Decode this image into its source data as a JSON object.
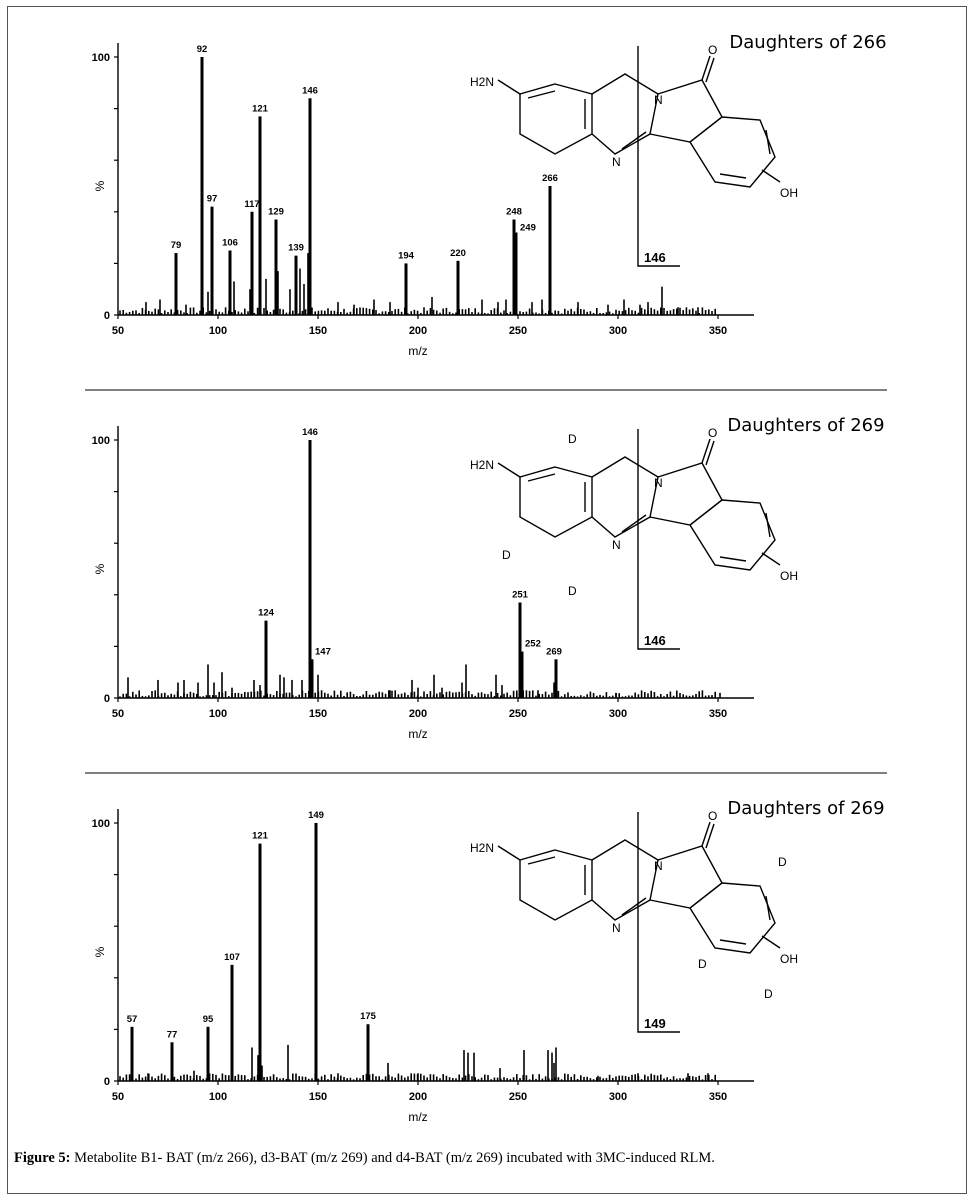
{
  "caption": {
    "label": "Figure 5:",
    "text": " Metabolite B1- BAT (m/z 266), d3-BAT (m/z 269) and d4-BAT (m/z 269) incubated with 3MC-induced RLM."
  },
  "chart_data": [
    {
      "type": "bar",
      "title": "Daughters of 266",
      "xlabel": "m/z",
      "ylabel": "%",
      "xlim": [
        50,
        350
      ],
      "ylim": [
        0,
        100
      ],
      "xticks": [
        50,
        100,
        150,
        200,
        250,
        300,
        350
      ],
      "yticks": [
        0,
        100
      ],
      "peaks": [
        {
          "x": 79,
          "y": 24,
          "label": "79"
        },
        {
          "x": 92,
          "y": 100,
          "label": "92"
        },
        {
          "x": 97,
          "y": 42,
          "label": "97"
        },
        {
          "x": 106,
          "y": 25,
          "label": "106"
        },
        {
          "x": 117,
          "y": 40,
          "label": "117"
        },
        {
          "x": 121,
          "y": 77,
          "label": "121"
        },
        {
          "x": 129,
          "y": 37,
          "label": "129"
        },
        {
          "x": 139,
          "y": 23,
          "label": "139"
        },
        {
          "x": 146,
          "y": 84,
          "label": "146"
        },
        {
          "x": 194,
          "y": 20,
          "label": "194"
        },
        {
          "x": 220,
          "y": 21,
          "label": "220"
        },
        {
          "x": 248,
          "y": 37,
          "label": "248"
        },
        {
          "x": 249,
          "y": 32,
          "label": "249"
        },
        {
          "x": 266,
          "y": 50,
          "label": "266"
        }
      ],
      "minor_peaks": [
        {
          "x": 95,
          "y": 9
        },
        {
          "x": 108,
          "y": 13
        },
        {
          "x": 116,
          "y": 10
        },
        {
          "x": 124,
          "y": 14
        },
        {
          "x": 130,
          "y": 17
        },
        {
          "x": 136,
          "y": 10
        },
        {
          "x": 141,
          "y": 18
        },
        {
          "x": 143,
          "y": 12
        },
        {
          "x": 145,
          "y": 24
        },
        {
          "x": 322,
          "y": 11
        },
        {
          "x": 64,
          "y": 5
        },
        {
          "x": 71,
          "y": 6
        },
        {
          "x": 84,
          "y": 4
        },
        {
          "x": 160,
          "y": 5
        },
        {
          "x": 168,
          "y": 4
        },
        {
          "x": 178,
          "y": 6
        },
        {
          "x": 186,
          "y": 5
        },
        {
          "x": 207,
          "y": 7
        },
        {
          "x": 232,
          "y": 6
        },
        {
          "x": 240,
          "y": 5
        },
        {
          "x": 244,
          "y": 6
        },
        {
          "x": 257,
          "y": 5
        },
        {
          "x": 262,
          "y": 6
        },
        {
          "x": 280,
          "y": 5
        },
        {
          "x": 295,
          "y": 4
        },
        {
          "x": 303,
          "y": 6
        },
        {
          "x": 311,
          "y": 4
        },
        {
          "x": 315,
          "y": 5
        },
        {
          "x": 330,
          "y": 3
        },
        {
          "x": 340,
          "y": 3
        }
      ],
      "structure": {
        "amine": "H2N",
        "hydroxyl": "OH",
        "oxygen": "O",
        "nitrogen_ring": "N",
        "nitrogen_lower": "N",
        "deuterium": [],
        "fragment": "146"
      }
    },
    {
      "type": "bar",
      "title": "Daughters of 269",
      "xlabel": "m/z",
      "ylabel": "%",
      "xlim": [
        50,
        350
      ],
      "ylim": [
        0,
        100
      ],
      "xticks": [
        50,
        100,
        150,
        200,
        250,
        300,
        350
      ],
      "yticks": [
        0,
        100
      ],
      "peaks": [
        {
          "x": 124,
          "y": 30,
          "label": "124"
        },
        {
          "x": 146,
          "y": 100,
          "label": "146"
        },
        {
          "x": 147,
          "y": 15,
          "label": "147"
        },
        {
          "x": 251,
          "y": 37,
          "label": "251"
        },
        {
          "x": 252,
          "y": 18,
          "label": "252"
        },
        {
          "x": 269,
          "y": 15,
          "label": "269"
        }
      ],
      "minor_peaks": [
        {
          "x": 55,
          "y": 8
        },
        {
          "x": 70,
          "y": 7
        },
        {
          "x": 80,
          "y": 6
        },
        {
          "x": 83,
          "y": 7
        },
        {
          "x": 90,
          "y": 6
        },
        {
          "x": 95,
          "y": 13
        },
        {
          "x": 98,
          "y": 6
        },
        {
          "x": 102,
          "y": 10
        },
        {
          "x": 107,
          "y": 4
        },
        {
          "x": 118,
          "y": 7
        },
        {
          "x": 121,
          "y": 5
        },
        {
          "x": 131,
          "y": 9
        },
        {
          "x": 133,
          "y": 8
        },
        {
          "x": 137,
          "y": 7
        },
        {
          "x": 142,
          "y": 7
        },
        {
          "x": 150,
          "y": 9
        },
        {
          "x": 186,
          "y": 3
        },
        {
          "x": 197,
          "y": 7
        },
        {
          "x": 200,
          "y": 4
        },
        {
          "x": 208,
          "y": 9
        },
        {
          "x": 212,
          "y": 4
        },
        {
          "x": 222,
          "y": 6
        },
        {
          "x": 224,
          "y": 13
        },
        {
          "x": 239,
          "y": 9
        },
        {
          "x": 242,
          "y": 5
        },
        {
          "x": 260,
          "y": 3
        },
        {
          "x": 268,
          "y": 6
        },
        {
          "x": 299,
          "y": 2
        },
        {
          "x": 351,
          "y": 2
        }
      ],
      "structure": {
        "amine": "H2N",
        "hydroxyl": "OH",
        "oxygen": "O",
        "nitrogen_ring": "N",
        "nitrogen_lower": "N",
        "deuterium": [
          "D",
          "D",
          "D"
        ],
        "fragment": "146"
      }
    },
    {
      "type": "bar",
      "title": "Daughters of 269",
      "xlabel": "m/z",
      "ylabel": "%",
      "xlim": [
        50,
        350
      ],
      "ylim": [
        0,
        100
      ],
      "xticks": [
        50,
        100,
        150,
        200,
        250,
        300,
        350
      ],
      "yticks": [
        0,
        100
      ],
      "peaks": [
        {
          "x": 57,
          "y": 21,
          "label": "57"
        },
        {
          "x": 77,
          "y": 15,
          "label": "77"
        },
        {
          "x": 95,
          "y": 21,
          "label": "95"
        },
        {
          "x": 107,
          "y": 45,
          "label": "107"
        },
        {
          "x": 121,
          "y": 92,
          "label": "121"
        },
        {
          "x": 149,
          "y": 100,
          "label": "149"
        },
        {
          "x": 175,
          "y": 22,
          "label": "175"
        }
      ],
      "minor_peaks": [
        {
          "x": 117,
          "y": 13
        },
        {
          "x": 120,
          "y": 10
        },
        {
          "x": 122,
          "y": 6
        },
        {
          "x": 135,
          "y": 14
        },
        {
          "x": 185,
          "y": 7
        },
        {
          "x": 223,
          "y": 12
        },
        {
          "x": 225,
          "y": 11
        },
        {
          "x": 228,
          "y": 11
        },
        {
          "x": 241,
          "y": 5
        },
        {
          "x": 253,
          "y": 12
        },
        {
          "x": 265,
          "y": 12
        },
        {
          "x": 267,
          "y": 11
        },
        {
          "x": 269,
          "y": 13
        },
        {
          "x": 268,
          "y": 7
        },
        {
          "x": 335,
          "y": 3
        },
        {
          "x": 65,
          "y": 3
        },
        {
          "x": 88,
          "y": 4
        },
        {
          "x": 160,
          "y": 3
        },
        {
          "x": 200,
          "y": 3
        },
        {
          "x": 290,
          "y": 2
        },
        {
          "x": 310,
          "y": 3
        },
        {
          "x": 345,
          "y": 3
        }
      ],
      "structure": {
        "amine": "H2N",
        "hydroxyl": "OH",
        "oxygen": "O",
        "nitrogen_ring": "N",
        "nitrogen_lower": "N",
        "deuterium": [
          "D",
          "D",
          "D"
        ],
        "fragment": "149"
      }
    }
  ]
}
